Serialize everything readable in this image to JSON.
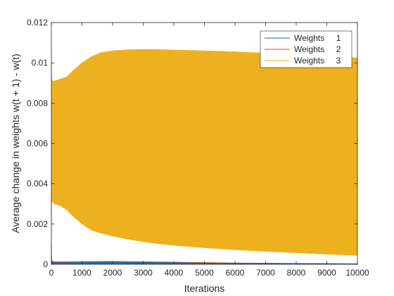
{
  "chart_data": {
    "type": "area",
    "title": "",
    "xlabel": "Iterations",
    "ylabel": "Average change in weights w(t + 1) - w(t)",
    "xlim": [
      0,
      10000
    ],
    "ylim": [
      0,
      0.012
    ],
    "xticks": [
      0,
      1000,
      2000,
      3000,
      4000,
      5000,
      6000,
      7000,
      8000,
      9000,
      10000
    ],
    "xtick_labels": [
      "0",
      "1000",
      "2000",
      "3000",
      "4000",
      "5000",
      "6000",
      "7000",
      "8000",
      "9000",
      "10000"
    ],
    "yticks": [
      0,
      0.002,
      0.004,
      0.006,
      0.008,
      0.01,
      0.012
    ],
    "ytick_labels": [
      "0",
      "0.002",
      "0.004",
      "0.006",
      "0.008",
      "0.01",
      "0.012"
    ],
    "grid": false,
    "legend_position": "top-right",
    "series": [
      {
        "name": "Weights     1",
        "color": "#0072BD",
        "x": [
          0,
          10,
          100,
          500,
          1000,
          2000,
          3000,
          4000,
          5000,
          6000,
          7000,
          8000,
          9000,
          10000
        ],
        "upper": [
          0.001,
          0.00012,
          8e-05,
          8e-05,
          9e-05,
          0.0001,
          9e-05,
          8e-05,
          6e-05,
          5e-05,
          4e-05,
          3e-05,
          3e-05,
          2e-05
        ],
        "lower": [
          0,
          2e-05,
          2e-05,
          2e-05,
          2e-05,
          2e-05,
          2e-05,
          2e-05,
          1e-05,
          1e-05,
          1e-05,
          1e-05,
          1e-05,
          1e-05
        ]
      },
      {
        "name": "Weights     2",
        "color": "#D95319",
        "x": [
          0,
          10,
          100,
          500,
          1000,
          2000,
          3000,
          4000,
          5000,
          6000,
          7000,
          8000,
          9000,
          10000
        ],
        "upper": [
          0.0011,
          0.00018,
          0.00013,
          0.00013,
          0.00014,
          0.00015,
          0.00013,
          0.00011,
          9e-05,
          7e-05,
          6e-05,
          5e-05,
          4e-05,
          3e-05
        ],
        "lower": [
          0,
          4e-05,
          4e-05,
          4e-05,
          4e-05,
          4e-05,
          3e-05,
          3e-05,
          3e-05,
          2e-05,
          2e-05,
          2e-05,
          1e-05,
          1e-05
        ]
      },
      {
        "name": "Weights     3",
        "color": "#EDB120",
        "x": [
          0,
          10,
          50,
          100,
          300,
          500,
          700,
          1000,
          1300,
          1600,
          2000,
          2500,
          3000,
          3500,
          4000,
          5000,
          6000,
          7000,
          8000,
          9000,
          10000
        ],
        "upper": [
          0.011,
          0.0092,
          0.0091,
          0.0091,
          0.0092,
          0.0093,
          0.0096,
          0.01,
          0.0103,
          0.0105,
          0.0106,
          0.01065,
          0.01067,
          0.01066,
          0.01064,
          0.0106,
          0.01055,
          0.01048,
          0.0104,
          0.01032,
          0.01025
        ],
        "lower": [
          0,
          0.0031,
          0.0031,
          0.003,
          0.0029,
          0.0027,
          0.0024,
          0.002,
          0.0017,
          0.00155,
          0.0014,
          0.00125,
          0.00112,
          0.00102,
          0.00094,
          0.00082,
          0.00072,
          0.00064,
          0.00057,
          0.0005,
          0.00044
        ]
      }
    ]
  }
}
